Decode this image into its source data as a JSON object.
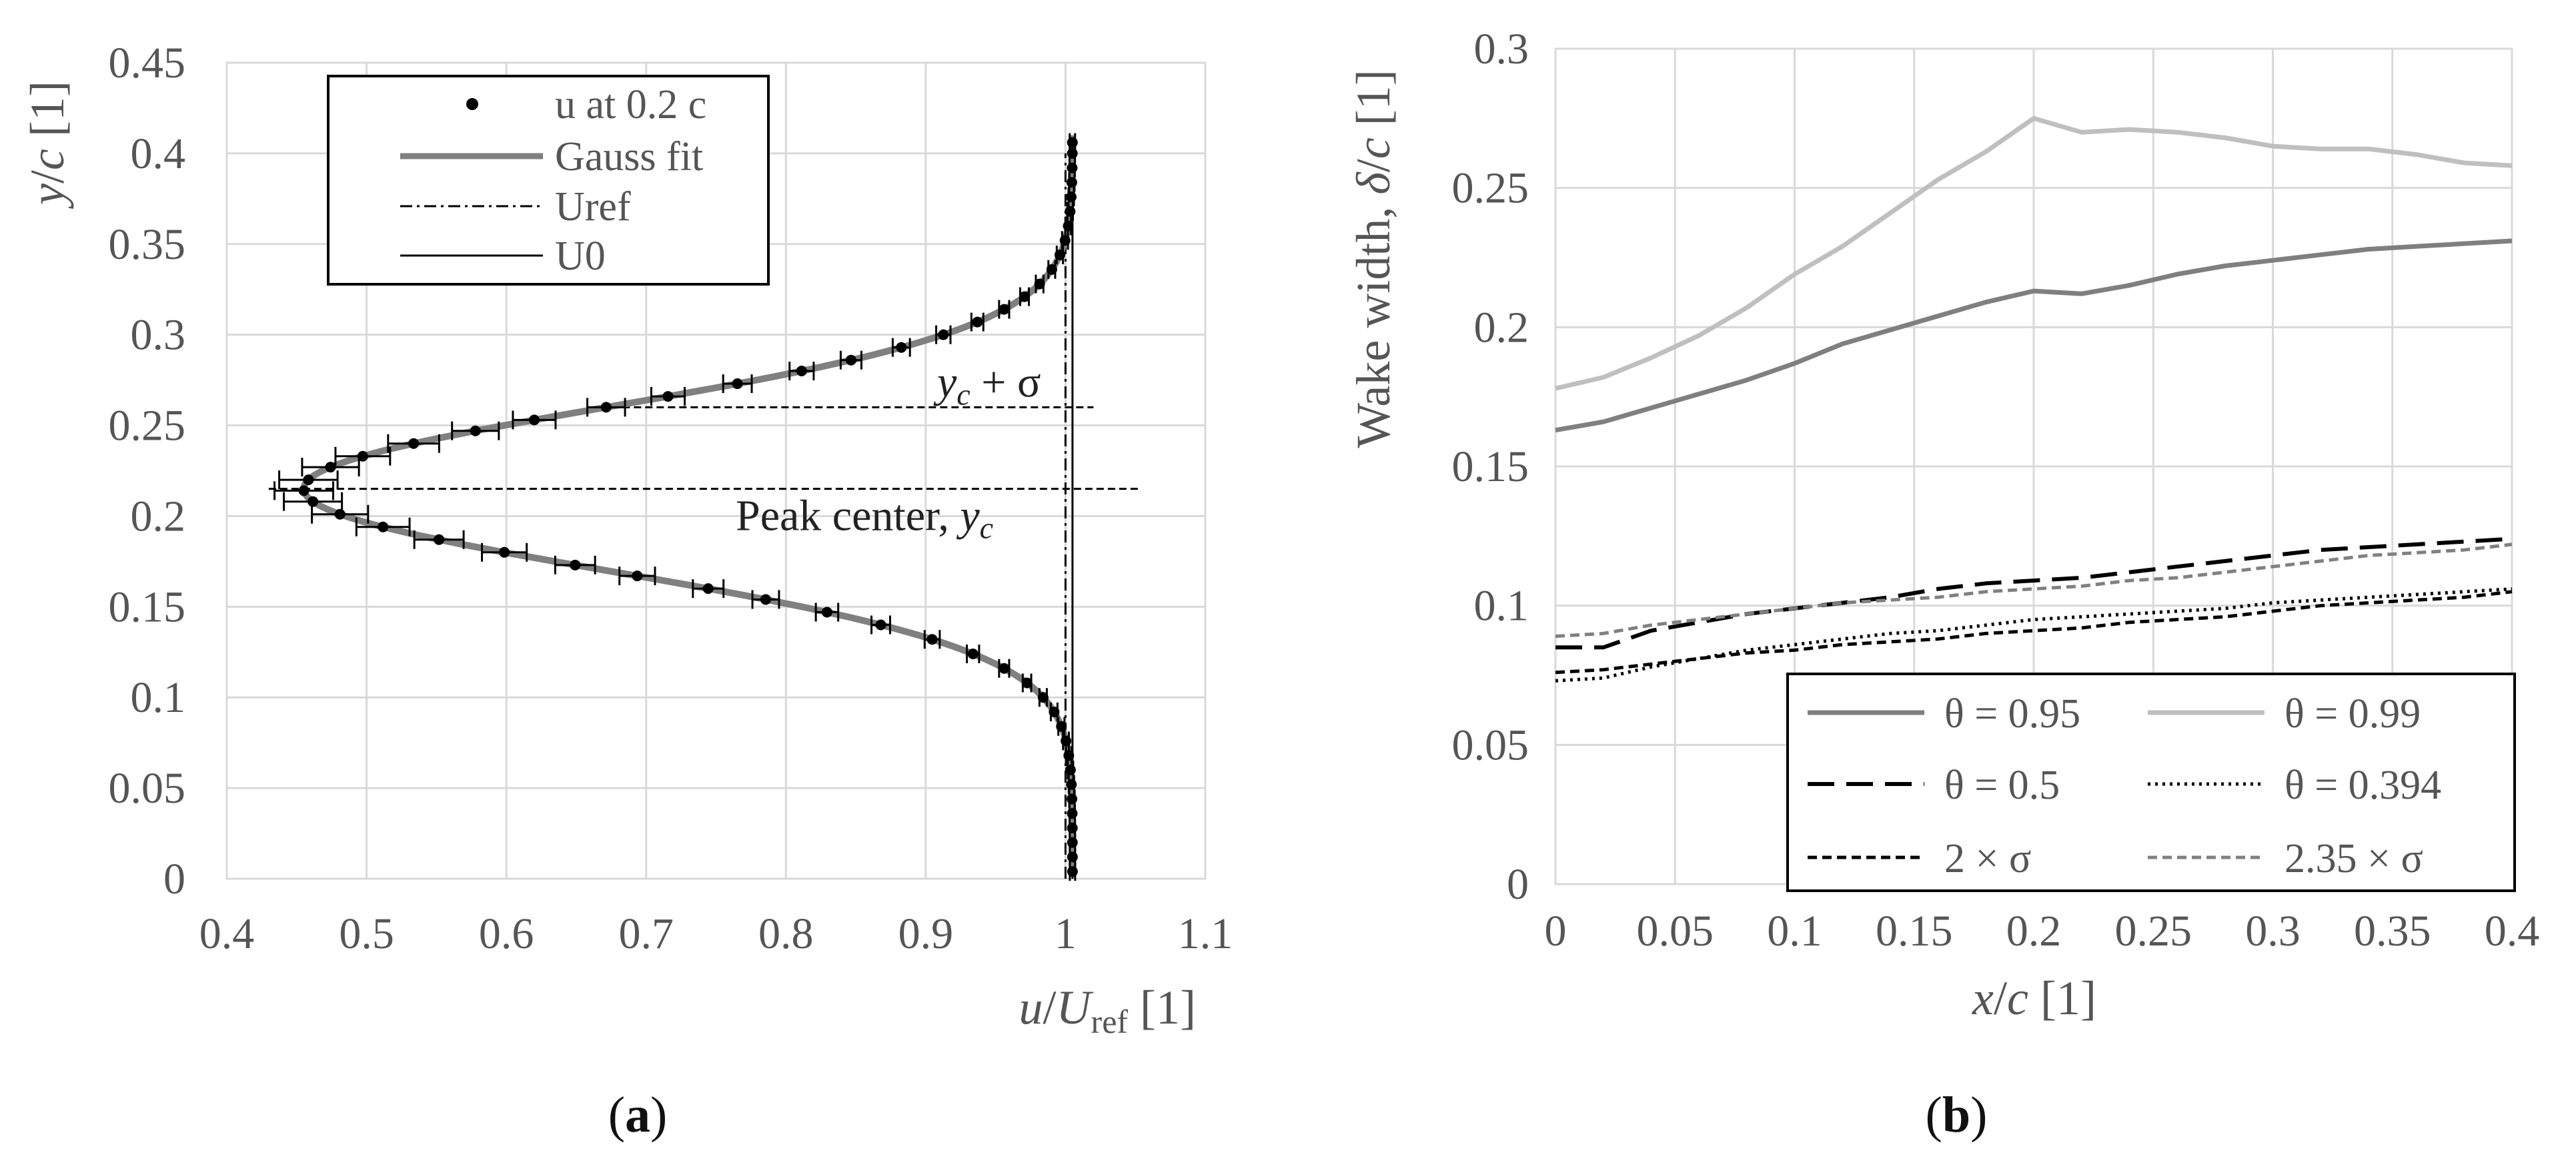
{
  "chart_data": [
    {
      "panel": "a",
      "type": "line",
      "xlabel": "u/U_ref [1]",
      "ylabel": "y/c [1]",
      "xlim": [
        0.4,
        1.1
      ],
      "ylim": [
        0,
        0.45
      ],
      "xticks": [
        "0.4",
        "0.5",
        "0.6",
        "0.7",
        "0.8",
        "0.9",
        "1",
        "1.1"
      ],
      "yticks": [
        "0",
        "0.05",
        "0.1",
        "0.15",
        "0.2",
        "0.25",
        "0.3",
        "0.35",
        "0.4",
        "0.45"
      ],
      "xticks_values": [
        0.4,
        0.5,
        0.6,
        0.7,
        0.8,
        0.9,
        1.0,
        1.1
      ],
      "yticks_values": [
        0,
        0.05,
        0.1,
        0.15,
        0.2,
        0.25,
        0.3,
        0.35,
        0.4,
        0.45
      ],
      "xlabel_parts": {
        "u": "u",
        "slash": "/",
        "U": "U",
        "sub": "ref",
        "unit": " [1]"
      },
      "ylabel_parts": {
        "y": "y",
        "slash": "/",
        "c": "c",
        "unit": " [1]"
      },
      "legend": [
        "u at 0.2 c",
        "Gauss fit",
        "Uref",
        "U0"
      ],
      "gauss": {
        "U0": 1.005,
        "depth": 0.55,
        "center": 0.215,
        "sigma": 0.045
      },
      "sample_points_y": [
        0.004,
        0.012,
        0.02,
        0.028,
        0.036,
        0.044,
        0.052,
        0.06,
        0.068,
        0.076,
        0.084,
        0.092,
        0.1,
        0.108,
        0.116,
        0.124,
        0.132,
        0.14,
        0.147,
        0.154,
        0.16,
        0.167,
        0.173,
        0.18,
        0.187,
        0.194,
        0.201,
        0.208,
        0.214,
        0.22,
        0.227,
        0.233,
        0.24,
        0.247,
        0.253,
        0.26,
        0.266,
        0.273,
        0.28,
        0.286,
        0.293,
        0.3,
        0.307,
        0.314,
        0.321,
        0.328,
        0.336,
        0.344,
        0.352,
        0.36,
        0.368,
        0.376,
        0.384,
        0.392,
        0.4,
        0.406
      ],
      "series_uref_x": 1.0,
      "series_u0_x": 1.005,
      "annotations": {
        "center_y": 0.215,
        "plus_sigma_y": 0.26,
        "label_center": {
          "main": "Peak center, ",
          "sym": "y",
          "sub": "c"
        },
        "label_sigma": {
          "sym": "y",
          "sub": "c",
          "rest": " + σ"
        }
      },
      "panel_label": {
        "open": "(",
        "letter": "a",
        "close": ")"
      }
    },
    {
      "panel": "b",
      "type": "line",
      "xlabel": "x/c [1]",
      "ylabel": "Wake width, δ/c [1]",
      "xlim": [
        0,
        0.4
      ],
      "ylim": [
        0,
        0.3
      ],
      "xticks": [
        "0",
        "0.05",
        "0.1",
        "0.15",
        "0.2",
        "0.25",
        "0.3",
        "0.35",
        "0.4"
      ],
      "yticks": [
        "0",
        "0.05",
        "0.1",
        "0.15",
        "0.2",
        "0.25",
        "0.3"
      ],
      "xticks_values": [
        0,
        0.05,
        0.1,
        0.15,
        0.2,
        0.25,
        0.3,
        0.35,
        0.4
      ],
      "yticks_values": [
        0,
        0.05,
        0.1,
        0.15,
        0.2,
        0.25,
        0.3
      ],
      "xlabel_parts": {
        "x": "x",
        "slash": "/",
        "c": "c",
        "unit": " [1]"
      },
      "ylabel_parts": {
        "pre": "Wake width, ",
        "d": "δ",
        "slash": "/",
        "c": "c",
        "unit": " [1]"
      },
      "x": [
        0,
        0.02,
        0.04,
        0.06,
        0.08,
        0.1,
        0.12,
        0.14,
        0.16,
        0.18,
        0.2,
        0.22,
        0.24,
        0.26,
        0.28,
        0.3,
        0.32,
        0.34,
        0.36,
        0.38,
        0.4
      ],
      "series": [
        {
          "name": "θ = 0.95",
          "color": "#7f7f7f",
          "dash": "",
          "width": 7,
          "values": [
            0.163,
            0.166,
            0.171,
            0.176,
            0.181,
            0.187,
            0.194,
            0.199,
            0.204,
            0.209,
            0.213,
            0.212,
            0.215,
            0.219,
            0.222,
            0.224,
            0.226,
            0.228,
            0.229,
            0.23,
            0.231
          ]
        },
        {
          "name": "θ = 0.99",
          "color": "#bfbfbf",
          "dash": "",
          "width": 7,
          "values": [
            0.178,
            0.182,
            0.189,
            0.197,
            0.207,
            0.219,
            0.229,
            0.241,
            0.253,
            0.263,
            0.275,
            0.27,
            0.271,
            0.27,
            0.268,
            0.265,
            0.264,
            0.264,
            0.262,
            0.259,
            0.258
          ]
        },
        {
          "name": "θ = 0.5",
          "color": "#000000",
          "dash": "40 18",
          "width": 6,
          "values": [
            0.085,
            0.085,
            0.091,
            0.094,
            0.097,
            0.099,
            0.101,
            0.103,
            0.106,
            0.108,
            0.109,
            0.11,
            0.112,
            0.114,
            0.116,
            0.118,
            0.12,
            0.121,
            0.122,
            0.123,
            0.124
          ]
        },
        {
          "name": "θ = 0.394",
          "color": "#000000",
          "dash": "4 7",
          "width": 5,
          "values": [
            0.073,
            0.074,
            0.078,
            0.081,
            0.084,
            0.086,
            0.088,
            0.09,
            0.091,
            0.093,
            0.095,
            0.096,
            0.097,
            0.098,
            0.099,
            0.101,
            0.102,
            0.103,
            0.104,
            0.105,
            0.106
          ]
        },
        {
          "name": "2 × σ",
          "color": "#000000",
          "dash": "14 8",
          "width": 5,
          "values": [
            0.076,
            0.077,
            0.079,
            0.081,
            0.083,
            0.084,
            0.086,
            0.087,
            0.088,
            0.09,
            0.091,
            0.092,
            0.094,
            0.095,
            0.096,
            0.098,
            0.1,
            0.101,
            0.102,
            0.103,
            0.105
          ]
        },
        {
          "name": "2.35 × σ",
          "color": "#808080",
          "dash": "14 8",
          "width": 5,
          "values": [
            0.089,
            0.09,
            0.093,
            0.095,
            0.097,
            0.099,
            0.101,
            0.102,
            0.103,
            0.105,
            0.106,
            0.107,
            0.109,
            0.11,
            0.112,
            0.114,
            0.116,
            0.118,
            0.119,
            0.12,
            0.122
          ]
        }
      ],
      "panel_label": {
        "open": "(",
        "letter": "b",
        "close": ")"
      }
    }
  ]
}
